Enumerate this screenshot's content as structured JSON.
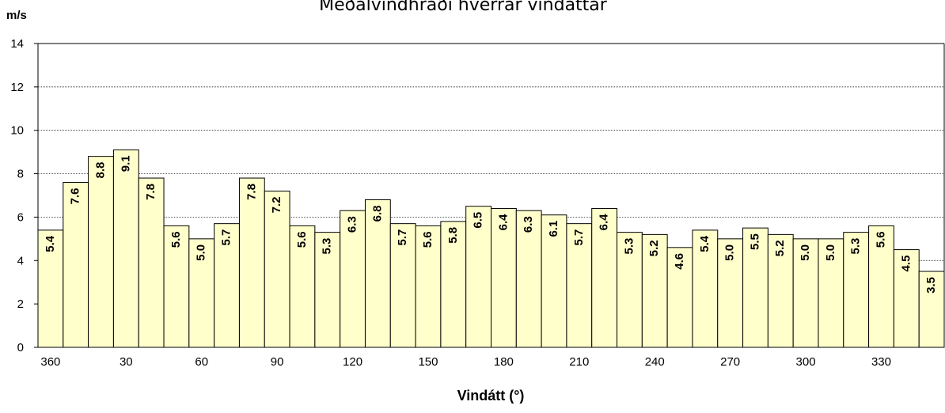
{
  "chart_data": {
    "type": "bar",
    "title": "Meðalvindhraði hverrar vindáttar",
    "y_label": "m/s",
    "x_label": "Vindátt (°)",
    "categories": [
      "360",
      null,
      null,
      "30",
      null,
      null,
      "60",
      null,
      null,
      "90",
      null,
      null,
      "120",
      null,
      null,
      "150",
      null,
      null,
      "180",
      null,
      null,
      "210",
      null,
      null,
      "240",
      null,
      null,
      "270",
      null,
      null,
      "300",
      null,
      null,
      "330",
      null,
      null
    ],
    "values": [
      5.4,
      7.6,
      8.8,
      9.1,
      7.8,
      5.6,
      5.0,
      5.7,
      7.8,
      7.2,
      5.6,
      5.3,
      6.3,
      6.8,
      5.7,
      5.6,
      5.8,
      6.5,
      6.4,
      6.3,
      6.1,
      5.7,
      6.4,
      5.3,
      5.2,
      4.6,
      5.4,
      5.0,
      5.5,
      5.2,
      5.0,
      5.0,
      5.3,
      5.6,
      4.5,
      3.5
    ],
    "value_labels": [
      "5.4",
      "7.6",
      "8.8",
      "9.1",
      "7.8",
      "5.6",
      "5.0",
      "5.7",
      "7.8",
      "7.2",
      "5.6",
      "5.3",
      "6.3",
      "6.8",
      "5.7",
      "5.6",
      "5.8",
      "6.5",
      "6.4",
      "6.3",
      "6.1",
      "5.7",
      "6.4",
      "5.3",
      "5.2",
      "4.6",
      "5.4",
      "5.0",
      "5.5",
      "5.2",
      "5.0",
      "5.0",
      "5.3",
      "5.6",
      "4.5",
      "3.5"
    ],
    "color": "#ffffcc",
    "ylim": [
      0,
      14
    ],
    "yticks": [
      0,
      2,
      4,
      6,
      8,
      10,
      12,
      14
    ],
    "grid": true
  }
}
